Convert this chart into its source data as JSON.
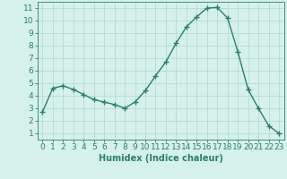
{
  "x": [
    0,
    1,
    2,
    3,
    4,
    5,
    6,
    7,
    8,
    9,
    10,
    11,
    12,
    13,
    14,
    15,
    16,
    17,
    18,
    19,
    20,
    21,
    22,
    23
  ],
  "y": [
    2.7,
    4.6,
    4.8,
    4.5,
    4.1,
    3.7,
    3.5,
    3.3,
    3.0,
    3.5,
    4.4,
    5.6,
    6.7,
    8.2,
    9.5,
    10.3,
    11.0,
    11.05,
    10.2,
    7.5,
    4.5,
    3.0,
    1.6,
    1.0
  ],
  "line_color": "#2e7d6e",
  "marker": "+",
  "marker_size": 4,
  "background_color": "#d6f0eb",
  "grid_color": "#b0d8d0",
  "xlabel": "Humidex (Indice chaleur)",
  "xlim": [
    -0.5,
    23.5
  ],
  "ylim": [
    0.5,
    11.5
  ],
  "yticks": [
    1,
    2,
    3,
    4,
    5,
    6,
    7,
    8,
    9,
    10,
    11
  ],
  "xticks": [
    0,
    1,
    2,
    3,
    4,
    5,
    6,
    7,
    8,
    9,
    10,
    11,
    12,
    13,
    14,
    15,
    16,
    17,
    18,
    19,
    20,
    21,
    22,
    23
  ],
  "axis_color": "#2e7d6e",
  "tick_color": "#2e7d6e",
  "label_color": "#2e7d6e",
  "xlabel_fontsize": 7,
  "tick_fontsize": 6.5,
  "linewidth": 1.0,
  "markeredgewidth": 1.0
}
